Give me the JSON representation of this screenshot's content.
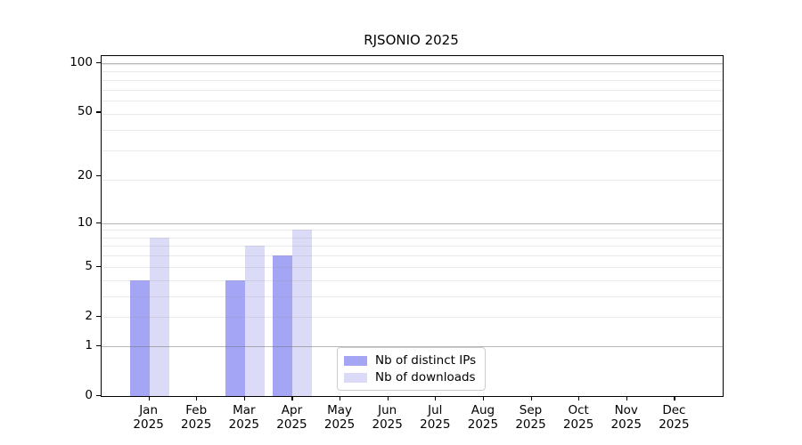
{
  "title": "RJSONIO 2025",
  "chart_data": {
    "type": "bar",
    "title": "RJSONIO 2025",
    "categories": [
      "Jan",
      "Feb",
      "Mar",
      "Apr",
      "May",
      "Jun",
      "Jul",
      "Aug",
      "Sep",
      "Oct",
      "Nov",
      "Dec"
    ],
    "x_sublabel_year": "2025",
    "series": [
      {
        "name": "Nb of distinct IPs",
        "color": "#a5a5f6",
        "values": [
          4,
          0,
          4,
          6,
          0,
          0,
          0,
          0,
          0,
          0,
          0,
          0
        ]
      },
      {
        "name": "Nb of downloads",
        "color": "#dbdbf8",
        "values": [
          8,
          0,
          7,
          9,
          0,
          0,
          0,
          0,
          0,
          0,
          0,
          0
        ]
      }
    ],
    "y_scale": "log10(1+x)",
    "y_ticks": [
      0,
      1,
      2,
      5,
      10,
      20,
      50,
      100
    ],
    "major_gridlines_values": [
      1,
      10,
      100
    ],
    "minor_gridlines_transformed": [
      3,
      4,
      5,
      6,
      7,
      8,
      9,
      10,
      20,
      30,
      40,
      50,
      60,
      70,
      80,
      90,
      100
    ],
    "ylim": [
      0,
      100
    ],
    "grid": true,
    "legend_position": "inside-bottom-center",
    "axis_color": "#000000",
    "minor_grid_color": "#ebebeb",
    "major_grid_color": "#b3b3b3"
  }
}
